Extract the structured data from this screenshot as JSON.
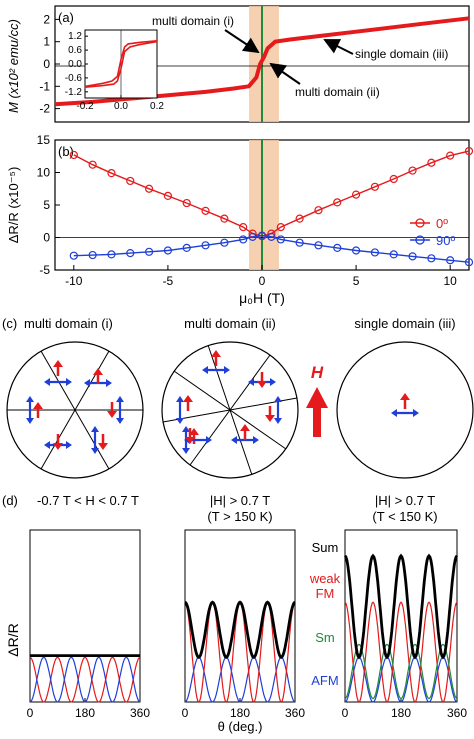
{
  "chart_data": [
    {
      "panel": "(a)",
      "type": "line",
      "ylabel": "M (x10² emu/cc)",
      "xlim": [
        -11,
        11
      ],
      "ylim": [
        -2.6,
        2.6
      ],
      "yticks": [
        -2,
        -1,
        0,
        1,
        2
      ],
      "x_tick_labels_shown": false,
      "series": [
        {
          "values_x": [
            -11,
            -9,
            -7,
            -5,
            -3,
            -1.5,
            -0.7,
            -0.3,
            -0.1,
            0.1,
            0.3,
            0.7,
            1.5,
            3,
            5,
            7,
            9,
            11
          ],
          "values_y": [
            -1.8,
            -1.7,
            -1.55,
            -1.4,
            -1.25,
            -1.1,
            -1.0,
            -0.6,
            0.0,
            0.3,
            0.7,
            1.0,
            1.1,
            1.25,
            1.45,
            1.65,
            1.85,
            2.05
          ]
        }
      ],
      "annotations": [
        "multi domain (i)",
        "multi domain (ii)",
        "single domain (iii)"
      ],
      "inset": {
        "xlim": [
          -0.2,
          0.2
        ],
        "ylim": [
          -2.2,
          2.2
        ],
        "xticks": [
          "-0.2",
          "0.0",
          "0.2"
        ],
        "yticks": [
          "-1.2",
          "-0.6",
          "0.0",
          "0.6",
          "1.2"
        ],
        "loop_up_x": [
          -0.2,
          -0.1,
          -0.04,
          -0.02,
          0.0,
          0.02,
          0.05,
          0.1,
          0.2
        ],
        "loop_up_y": [
          -1.5,
          -1.4,
          -1.3,
          -1.1,
          -0.3,
          0.8,
          1.1,
          1.25,
          1.45
        ],
        "loop_down_x": [
          0.2,
          0.1,
          0.04,
          0.02,
          0.0,
          -0.02,
          -0.05,
          -0.1,
          -0.2
        ],
        "loop_down_y": [
          1.5,
          1.4,
          1.3,
          1.1,
          0.3,
          -0.8,
          -1.1,
          -1.25,
          -1.45
        ]
      }
    },
    {
      "panel": "(b)",
      "type": "line",
      "xlabel": "μ₀H (T)",
      "ylabel": "ΔR/R (x10⁻⁵)",
      "xlim": [
        -11,
        11
      ],
      "ylim": [
        -5,
        15
      ],
      "xticks": [
        -10,
        -5,
        0,
        5,
        10
      ],
      "yticks": [
        -5,
        0,
        5,
        10,
        15
      ],
      "legend": "right",
      "series": [
        {
          "name": "0º",
          "x": [
            -10,
            -9,
            -8,
            -7,
            -6,
            -5,
            -4,
            -3,
            -2,
            -1,
            -0.5,
            0,
            0.5,
            1,
            2,
            3,
            4,
            5,
            6,
            7,
            8,
            9,
            10,
            11
          ],
          "values": [
            12.7,
            11.2,
            9.9,
            8.7,
            7.5,
            6.4,
            5.3,
            4.1,
            2.9,
            1.6,
            0.6,
            0.2,
            0.6,
            1.6,
            2.9,
            4.2,
            5.4,
            6.6,
            7.8,
            9.0,
            10.3,
            11.5,
            12.6,
            13.3
          ]
        },
        {
          "name": "90º",
          "x": [
            -10,
            -9,
            -8,
            -7,
            -6,
            -5,
            -4,
            -3,
            -2,
            -1,
            -0.5,
            0,
            0.5,
            1,
            2,
            3,
            4,
            5,
            6,
            7,
            8,
            9,
            10,
            11
          ],
          "values": [
            -2.8,
            -2.7,
            -2.6,
            -2.4,
            -2.2,
            -2.0,
            -1.6,
            -1.2,
            -0.8,
            -0.3,
            0.1,
            0.3,
            0.1,
            -0.3,
            -0.8,
            -1.2,
            -1.6,
            -2.0,
            -2.3,
            -2.6,
            -2.9,
            -3.2,
            -3.5,
            -3.8
          ]
        }
      ]
    },
    {
      "panel": "(d)-left",
      "type": "line",
      "title": "-0.7 T < H < 0.7 T",
      "ylabel": "ΔR/R",
      "xlim": [
        0,
        360
      ],
      "xticks": [
        0,
        180,
        360
      ],
      "curves": [
        "sum flat",
        "red cos²",
        "blue sin²"
      ]
    },
    {
      "panel": "(d)-middle",
      "type": "line",
      "title": "|H| > 0.7 T",
      "subtitle": "(T > 150 K)",
      "xlabel": "θ (deg.)",
      "xlim": [
        0,
        360
      ],
      "xticks": [
        0,
        180,
        360
      ]
    },
    {
      "panel": "(d)-right",
      "type": "line",
      "title": "|H| > 0.7 T",
      "subtitle": "(T < 150 K)",
      "xlim": [
        0,
        360
      ],
      "xticks": [
        0,
        180,
        360
      ],
      "legend_labels": [
        "Sum",
        "weak",
        "FM",
        "Sm",
        "AFM"
      ]
    }
  ],
  "panel_c": {
    "label": "(c)",
    "titles": [
      "multi domain (i)",
      "multi domain (ii)",
      "single domain (iii)"
    ],
    "field_label": "H"
  },
  "panel_d_label": "(d)",
  "colors": {
    "red": "#e41a1c",
    "blue": "#1f3fd8",
    "green": "#1e8a3a",
    "orange_band": "#f5c9a3"
  }
}
